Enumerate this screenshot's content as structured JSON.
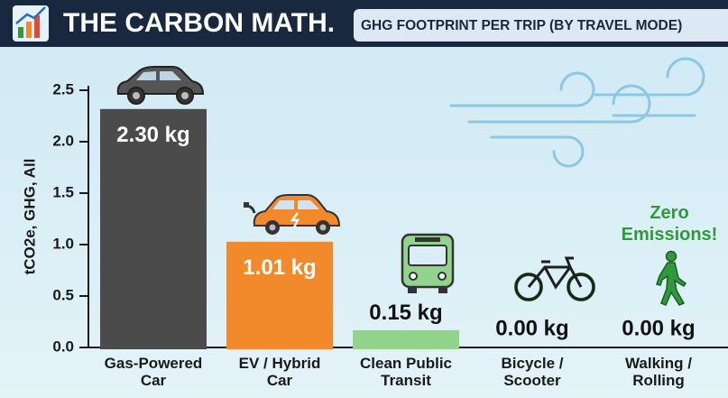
{
  "chart_data": {
    "type": "bar",
    "title": "THE CARBON MATH.",
    "subtitle": "GHG FOOTPRINT PER TRIP (BY TRAVEL MODE)",
    "y_label": "tCO2e, GHG, All",
    "annotation": "Zero Emissions!",
    "categories": [
      "Gas-Powered Car",
      "EV / Hybrid Car",
      "Clean Public Transit",
      "Bicycle / Scooter",
      "Walking / Rolling"
    ],
    "values": [
      2.3,
      1.01,
      0.15,
      0.0,
      0.0
    ],
    "value_labels": [
      "2.30 kg",
      "1.01 kg",
      "0.15 kg",
      "0.00 kg",
      "0.00 kg"
    ],
    "colors": [
      "#4b4b4b",
      "#f2892a",
      "#93d48d",
      "#2f9a3c",
      "#2f9a3c"
    ],
    "ylim": [
      0,
      2.5
    ],
    "yticks": [
      {
        "value": 0,
        "label": "0.0"
      },
      0.5,
      {
        "value": 1,
        "label": "1.0"
      },
      1.5,
      {
        "value": 2,
        "label": "2.0"
      },
      2.5
    ],
    "grid": false
  }
}
